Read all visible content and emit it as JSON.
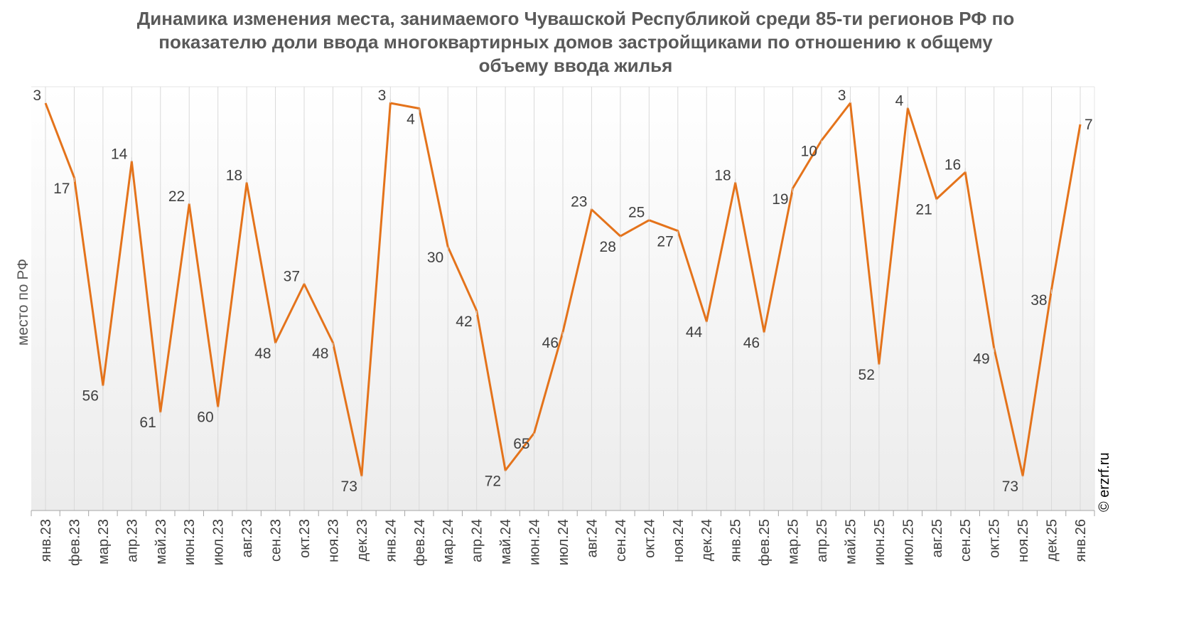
{
  "chart_data": {
    "type": "line",
    "title_lines": [
      "Динамика изменения места, занимаемого Чувашской Республикой среди 85-ти регионов РФ по",
      "показателю доли ввода многоквартирных домов застройщиками по отношению к общему",
      "объему ввода жилья"
    ],
    "ylabel": "место по РФ",
    "xlabel": "",
    "y_inverted": true,
    "ylim": [
      1,
      85
    ],
    "grid": "vertical",
    "categories": [
      "янв.23",
      "фев.23",
      "мар.23",
      "апр.23",
      "май.23",
      "июн.23",
      "июл.23",
      "авг.23",
      "сен.23",
      "окт.23",
      "ноя.23",
      "дек.23",
      "янв.24",
      "фев.24",
      "мар.24",
      "апр.24",
      "май.24",
      "июн.24",
      "июл.24",
      "авг.24",
      "сен.24",
      "окт.24",
      "ноя.24",
      "дек.24",
      "янв.25",
      "фев.25",
      "мар.25",
      "апр.25",
      "май.25",
      "июн.25",
      "июл.25",
      "авг.25",
      "сен.25",
      "окт.25",
      "ноя.25",
      "дек.25",
      "янв.26"
    ],
    "series": [
      {
        "values": [
          3,
          17,
          56,
          14,
          61,
          22,
          60,
          18,
          48,
          37,
          48,
          73,
          3,
          4,
          30,
          42,
          72,
          65,
          46,
          23,
          28,
          25,
          27,
          44,
          18,
          46,
          19,
          10,
          3,
          52,
          4,
          21,
          16,
          49,
          73,
          38,
          7
        ],
        "labels": [
          "3",
          "17",
          "56",
          "14",
          "61",
          "22",
          "60",
          "18",
          "48",
          "37",
          "48",
          "73",
          "3",
          "4",
          "30",
          "42",
          "72",
          "65",
          "46",
          "23",
          "28",
          "25",
          "27",
          "44",
          "18",
          "46",
          "19",
          "10",
          "3",
          "52",
          "4",
          "21",
          "16",
          "49",
          "73",
          "38",
          "7"
        ],
        "color": "#E4731B"
      }
    ]
  },
  "watermark": "© erzrf.ru",
  "colors": {
    "line": "#E4731B",
    "grid": "#d9d9d9",
    "text": "#404040",
    "title": "#595959"
  }
}
